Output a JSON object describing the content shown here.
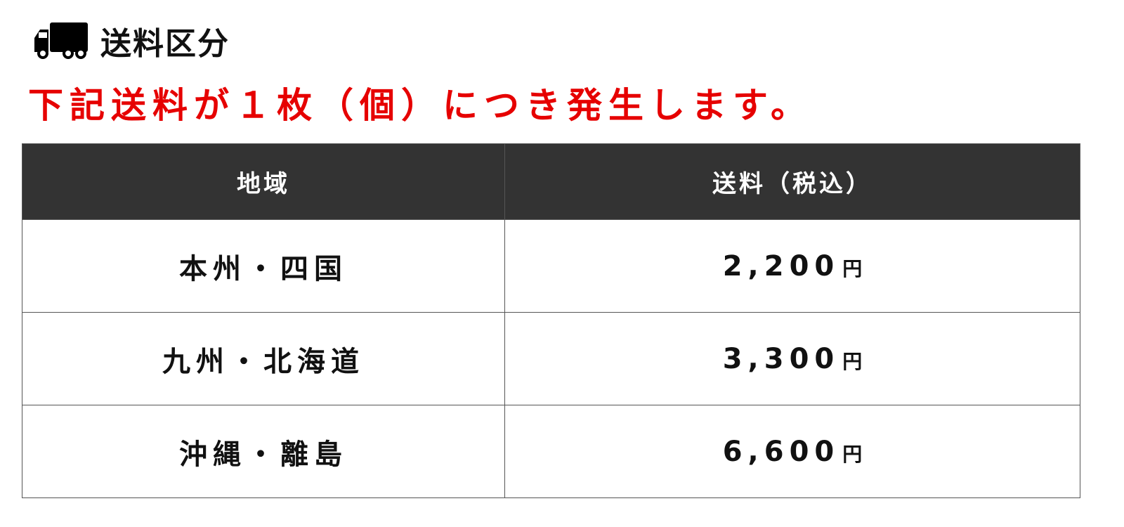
{
  "header": {
    "icon": "truck-icon",
    "title": "送料区分"
  },
  "notice": {
    "text": "下記送料が１枚（個）につき発生します。",
    "color": "#e60000"
  },
  "table": {
    "columns": [
      "地域",
      "送料（税込）"
    ],
    "rows": [
      {
        "region": "本州・四国",
        "price": "2,200",
        "unit": "円"
      },
      {
        "region": "九州・北海道",
        "price": "3,300",
        "unit": "円"
      },
      {
        "region": "沖縄・離島",
        "price": "6,600",
        "unit": "円"
      }
    ]
  }
}
